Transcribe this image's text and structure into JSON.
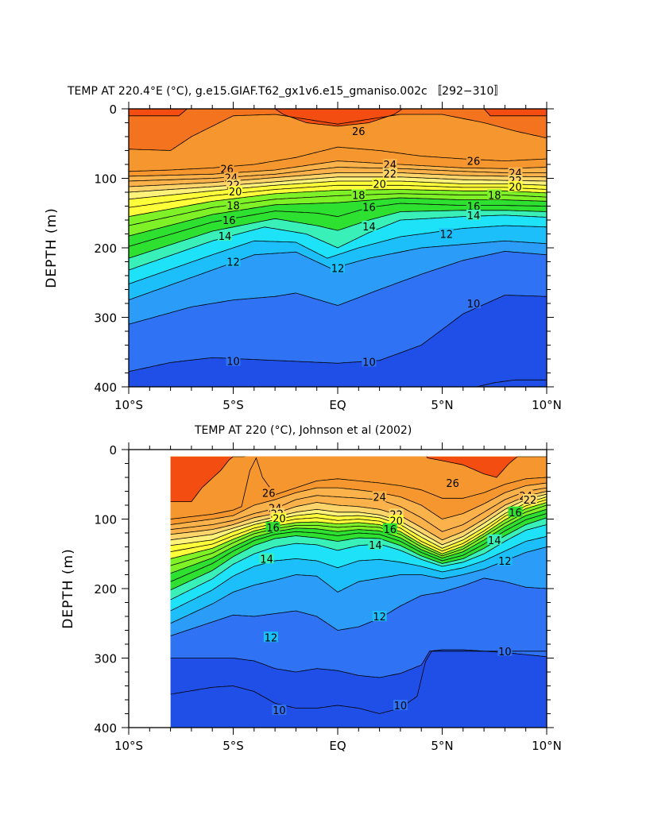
{
  "chart_data": [
    {
      "type": "heatmap",
      "subtype": "filled-contour",
      "title": "TEMP AT 220.4°E (°C), g.e15.GIAF.T62_gx1v6.e15_gmaniso.002c 〚292−310〛",
      "xlabel": "",
      "ylabel": "DEPTH (m)",
      "x_ticks": [
        "10°S",
        "5°S",
        "EQ",
        "5°N",
        "10°N"
      ],
      "x_range_lat": [
        -10,
        10
      ],
      "y_ticks": [
        "0",
        "100",
        "200",
        "300",
        "400"
      ],
      "y_range_m": [
        0,
        400
      ],
      "y_inverted": true,
      "contour_interval_C": 1,
      "colorscale": [
        "#1f4fe6",
        "#2f72f4",
        "#2b9cf7",
        "#1cbff9",
        "#1ee2f7",
        "#38f0b8",
        "#2ee02f",
        "#7ef227",
        "#ffff3a",
        "#fff27a",
        "#fdd56a",
        "#fbb24a",
        "#f6962e",
        "#f4731e",
        "#f44d12"
      ],
      "labeled_isotherms": [
        {
          "value": 26,
          "depths_m": [
            {
              "lat": -5.3,
              "depth": 86
            },
            {
              "lat": 1.0,
              "depth": 32
            },
            {
              "lat": 6.5,
              "depth": 75
            }
          ]
        },
        {
          "value": 24,
          "depths_m": [
            {
              "lat": -5.1,
              "depth": 99
            },
            {
              "lat": 2.5,
              "depth": 80
            },
            {
              "lat": 8.5,
              "depth": 92
            }
          ]
        },
        {
          "value": 22,
          "depths_m": [
            {
              "lat": -5.0,
              "depth": 109
            },
            {
              "lat": 2.5,
              "depth": 93
            },
            {
              "lat": 8.5,
              "depth": 103
            }
          ]
        },
        {
          "value": 20,
          "depths_m": [
            {
              "lat": -4.9,
              "depth": 119
            },
            {
              "lat": 2.0,
              "depth": 108
            },
            {
              "lat": 8.5,
              "depth": 112
            }
          ]
        },
        {
          "value": 18,
          "depths_m": [
            {
              "lat": -5.0,
              "depth": 139
            },
            {
              "lat": 1.0,
              "depth": 124
            },
            {
              "lat": 7.5,
              "depth": 124
            }
          ]
        },
        {
          "value": 16,
          "depths_m": [
            {
              "lat": -5.2,
              "depth": 160
            },
            {
              "lat": 1.5,
              "depth": 141
            },
            {
              "lat": 6.5,
              "depth": 140
            }
          ]
        },
        {
          "value": 14,
          "depths_m": [
            {
              "lat": -5.4,
              "depth": 183
            },
            {
              "lat": 1.5,
              "depth": 169
            },
            {
              "lat": 6.5,
              "depth": 153
            }
          ]
        },
        {
          "value": 12,
          "depths_m": [
            {
              "lat": -5.0,
              "depth": 220
            },
            {
              "lat": 0.0,
              "depth": 229
            },
            {
              "lat": 5.2,
              "depth": 180
            }
          ]
        },
        {
          "value": 10,
          "depths_m": [
            {
              "lat": -5.0,
              "depth": 363
            },
            {
              "lat": 1.5,
              "depth": 364
            },
            {
              "lat": 6.5,
              "depth": 280
            }
          ]
        }
      ],
      "contour_labels": [
        "26",
        "26",
        "26",
        "24",
        "24",
        "24",
        "22",
        "22",
        "22",
        "20",
        "20",
        "20",
        "18",
        "18",
        "18",
        "16",
        "16",
        "16",
        "14",
        "14",
        "14",
        "12",
        "12",
        "12",
        "10",
        "10",
        "10"
      ]
    },
    {
      "type": "heatmap",
      "subtype": "filled-contour",
      "title": "TEMP AT 220 (°C), Johnson et al (2002)",
      "xlabel": "",
      "ylabel": "DEPTH (m)",
      "x_ticks": [
        "10°S",
        "5°S",
        "EQ",
        "5°N",
        "10°N"
      ],
      "x_range_lat": [
        -10,
        10
      ],
      "data_lat_range": [
        -8,
        10
      ],
      "data_depth_range_m": [
        10,
        400
      ],
      "y_ticks": [
        "0",
        "100",
        "200",
        "300",
        "400"
      ],
      "y_range_m": [
        0,
        400
      ],
      "y_inverted": true,
      "contour_interval_C": 1,
      "colorscale": [
        "#1f4fe6",
        "#2f72f4",
        "#2b9cf7",
        "#1cbff9",
        "#1ee2f7",
        "#38f0b8",
        "#2ee02f",
        "#7ef227",
        "#ffff3a",
        "#fff27a",
        "#fdd56a",
        "#fbb24a",
        "#f6962e",
        "#f4731e",
        "#f44d12"
      ],
      "labeled_isotherms": [
        {
          "value": 26,
          "depths_m": [
            {
              "lat": -3.3,
              "depth": 62
            },
            {
              "lat": 5.5,
              "depth": 48
            }
          ]
        },
        {
          "value": 24,
          "depths_m": [
            {
              "lat": -3.0,
              "depth": 84
            },
            {
              "lat": 2.0,
              "depth": 68
            },
            {
              "lat": 9.0,
              "depth": 66
            }
          ]
        },
        {
          "value": 22,
          "depths_m": [
            {
              "lat": -2.9,
              "depth": 92
            },
            {
              "lat": 2.8,
              "depth": 93
            },
            {
              "lat": 9.2,
              "depth": 72
            }
          ]
        },
        {
          "value": 20,
          "depths_m": [
            {
              "lat": -2.8,
              "depth": 99
            },
            {
              "lat": 2.8,
              "depth": 102
            }
          ]
        },
        {
          "value": 16,
          "depths_m": [
            {
              "lat": -3.1,
              "depth": 112
            },
            {
              "lat": 2.5,
              "depth": 114
            },
            {
              "lat": 8.5,
              "depth": 90
            }
          ]
        },
        {
          "value": 14,
          "depths_m": [
            {
              "lat": -3.4,
              "depth": 157
            },
            {
              "lat": 1.8,
              "depth": 137
            },
            {
              "lat": 7.5,
              "depth": 130
            }
          ]
        },
        {
          "value": 12,
          "depths_m": [
            {
              "lat": -3.2,
              "depth": 270
            },
            {
              "lat": 2.0,
              "depth": 240
            },
            {
              "lat": 8.0,
              "depth": 160
            }
          ]
        },
        {
          "value": 10,
          "depths_m": [
            {
              "lat": -2.8,
              "depth": 375
            },
            {
              "lat": 3.0,
              "depth": 368
            },
            {
              "lat": 8.0,
              "depth": 290
            }
          ]
        }
      ],
      "contour_labels": [
        "26",
        "26",
        "24",
        "24",
        "24",
        "22",
        "22",
        "22",
        "20",
        "20",
        "16",
        "16",
        "16",
        "14",
        "14",
        "14",
        "12",
        "12",
        "12",
        "10",
        "10",
        "10"
      ]
    }
  ]
}
